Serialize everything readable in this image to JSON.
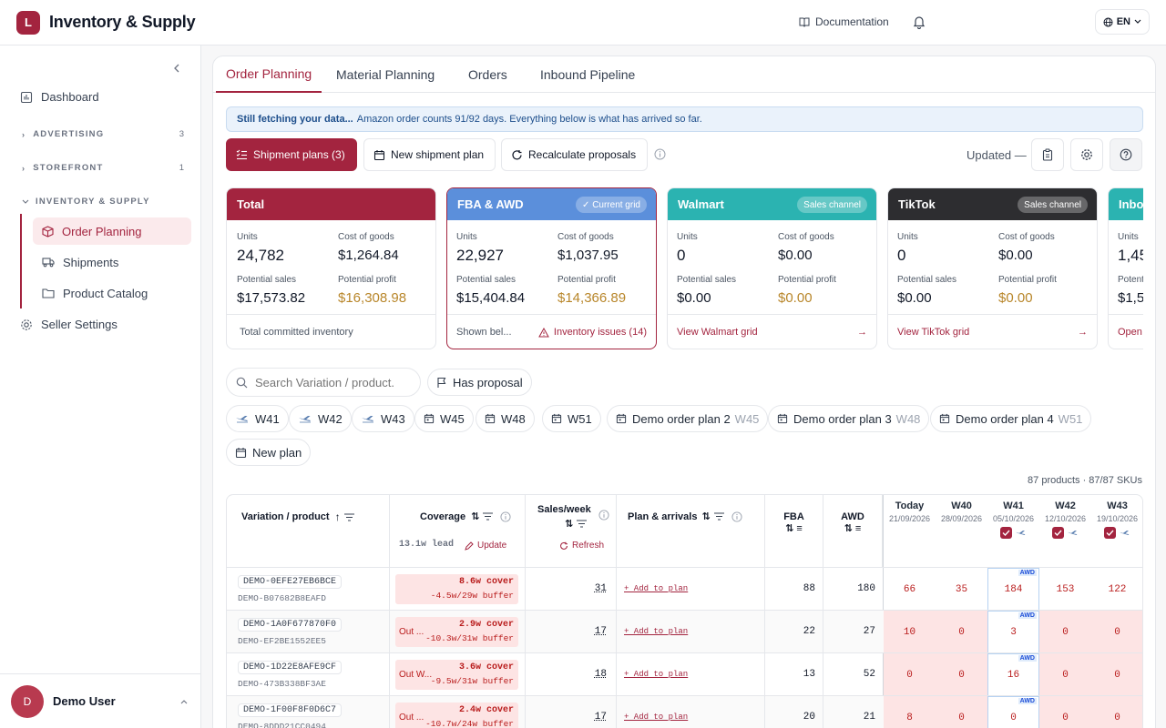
{
  "app": {
    "logo_letter": "L",
    "title": "Inventory & Supply"
  },
  "topbar": {
    "documentation": "Documentation",
    "language": "EN"
  },
  "sidebar": {
    "dashboard": "Dashboard",
    "advertising": {
      "label": "ADVERTISING",
      "count": "3"
    },
    "storefront": {
      "label": "STOREFRONT",
      "count": "1"
    },
    "inventory": {
      "label": "INVENTORY & SUPPLY"
    },
    "sub_items": [
      "Order Planning",
      "Shipments",
      "Product Catalog"
    ],
    "seller_settings": "Seller Settings",
    "user": {
      "initial": "D",
      "name": "Demo User"
    }
  },
  "tabs": [
    "Order Planning",
    "Material Planning",
    "Orders",
    "Inbound Pipeline"
  ],
  "banner": {
    "bold": "Still fetching your data...",
    "text": "Amazon order counts 91/92 days. Everything below is what has arrived so far."
  },
  "toolbar": {
    "shipment_plans": "Shipment plans (3)",
    "new_plan": "New shipment plan",
    "recalculate": "Recalculate proposals",
    "updated": "Updated —"
  },
  "cards": [
    {
      "title": "Total",
      "pill": "",
      "color": "#a3243f",
      "units": "24,782",
      "cost": "$1,264.84",
      "sales": "$17,573.82",
      "profit": "$16,308.98",
      "foot": "Total committed inventory",
      "foot_link": ""
    },
    {
      "title": "FBA & AWD",
      "pill": "✓ Current grid",
      "color": "#5b8fdb",
      "units": "22,927",
      "cost": "$1,037.95",
      "sales": "$15,404.84",
      "profit": "$14,366.89",
      "foot": "Shown bel...",
      "foot_link": "Inventory issues (14)"
    },
    {
      "title": "Walmart",
      "pill": "Sales channel",
      "color": "#2bb3b1",
      "units": "0",
      "cost": "$0.00",
      "sales": "$0.00",
      "profit": "$0.00",
      "foot": "",
      "foot_link": "View Walmart grid"
    },
    {
      "title": "TikTok",
      "pill": "Sales channel",
      "color": "#2d2d30",
      "units": "0",
      "cost": "$0.00",
      "sales": "$0.00",
      "profit": "$0.00",
      "foot": "",
      "foot_link": "View TikTok grid"
    },
    {
      "title": "Inbou",
      "pill": "",
      "color": "#2bb3b1",
      "units": "1,45",
      "cost": "",
      "sales": "$1,5",
      "profit": "",
      "foot": "",
      "foot_link": "Open"
    }
  ],
  "metric_labels": {
    "units": "Units",
    "cost": "Cost of goods",
    "sales": "Potential sales",
    "profit": "Potential profit",
    "potent": "Potent"
  },
  "filters": {
    "search_placeholder": "Search Variation / product.",
    "has_proposal": "Has proposal",
    "chips": [
      {
        "label": "W41",
        "suffix": "",
        "icon": "plane"
      },
      {
        "label": "W42",
        "suffix": "",
        "icon": "plane"
      },
      {
        "label": "W43",
        "suffix": "",
        "icon": "plane"
      },
      {
        "label": "W45",
        "suffix": "",
        "icon": "calendar"
      },
      {
        "label": "W48",
        "suffix": "",
        "icon": "calendar"
      },
      {
        "label": "W51",
        "suffix": "",
        "icon": "calendar"
      },
      {
        "label": "Demo order plan 2",
        "suffix": "W45",
        "icon": "calendar"
      },
      {
        "label": "Demo order plan 3",
        "suffix": "W48",
        "icon": "calendar"
      },
      {
        "label": "Demo order plan 4",
        "suffix": "W51",
        "icon": "calendar"
      }
    ],
    "new_plan": "New plan",
    "counts": "87 products · 87/87 SKUs"
  },
  "table": {
    "headers": {
      "variation": "Variation / product",
      "coverage": "Coverage",
      "lead": "13.1w lead",
      "update": "Update",
      "sales_week": "Sales/week",
      "refresh": "Refresh",
      "plan": "Plan & arrivals",
      "fba": "FBA",
      "awd": "AWD"
    },
    "days": [
      {
        "label": "Today",
        "date": "21/09/2026",
        "check": false
      },
      {
        "label": "W40",
        "date": "28/09/2026",
        "check": false
      },
      {
        "label": "W41",
        "date": "05/10/2026",
        "check": true
      },
      {
        "label": "W42",
        "date": "12/10/2026",
        "check": true
      },
      {
        "label": "W43",
        "date": "19/10/2026",
        "check": true
      }
    ],
    "add_to_plan": "+ Add to plan",
    "awd_tag": "AWD",
    "rows": [
      {
        "sku": "DEMO-0EFE27EB6BCE",
        "asin": "DEMO-B07682B8EAFD",
        "status": "",
        "cover": "8.6w cover",
        "buffer": "-4.5w/29w buffer",
        "sales": "31",
        "fba": "88",
        "awd": "180",
        "weeks": [
          "66",
          "35",
          "184",
          "153",
          "122"
        ],
        "pink": [
          false,
          false,
          false,
          false,
          false
        ]
      },
      {
        "sku": "DEMO-1A0F677870F0",
        "asin": "DEMO-EF2BE1552EE5",
        "status": "Out ...",
        "cover": "2.9w cover",
        "buffer": "-10.3w/31w buffer",
        "sales": "17",
        "fba": "22",
        "awd": "27",
        "weeks": [
          "10",
          "0",
          "3",
          "0",
          "0"
        ],
        "pink": [
          true,
          true,
          false,
          true,
          true
        ]
      },
      {
        "sku": "DEMO-1D22E8AFE9CF",
        "asin": "DEMO-473B338BF3AE",
        "status": "Out W...",
        "cover": "3.6w cover",
        "buffer": "-9.5w/31w buffer",
        "sales": "18",
        "fba": "13",
        "awd": "52",
        "weeks": [
          "0",
          "0",
          "16",
          "0",
          "0"
        ],
        "pink": [
          true,
          true,
          false,
          true,
          true
        ]
      },
      {
        "sku": "DEMO-1F00F8F0D6C7",
        "asin": "DEMO-8DDD21CC0494",
        "status": "Out ...",
        "cover": "2.4w cover",
        "buffer": "-10.7w/24w buffer",
        "sales": "17",
        "fba": "20",
        "awd": "21",
        "weeks": [
          "8",
          "0",
          "0",
          "0",
          "0"
        ],
        "pink": [
          true,
          true,
          false,
          true,
          true
        ]
      }
    ]
  }
}
